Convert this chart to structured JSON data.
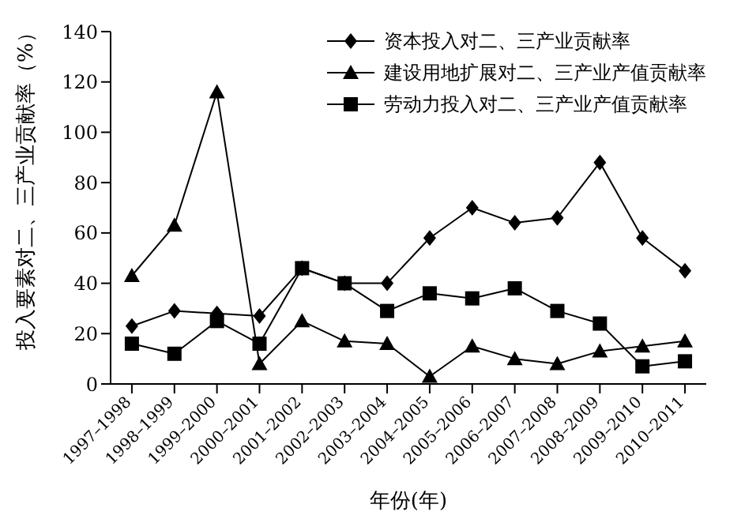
{
  "chart_data": {
    "type": "line",
    "xlabel": "年份(年)",
    "ylabel": "投入要素对二、三产业贡献率（%）",
    "categories": [
      "1997–1998",
      "1998–1999",
      "1999–2000",
      "2000–2001",
      "2001–2002",
      "2002–2003",
      "2003–2004",
      "2004–2005",
      "2005–2006",
      "2006–2007",
      "2007–2008",
      "2008–2009",
      "2009–2010",
      "2010–2011"
    ],
    "series": [
      {
        "name": "资本投入对二、三产业贡献率",
        "color": "#000000",
        "marker": "diamond",
        "values": [
          23,
          29,
          28,
          27,
          46,
          40,
          40,
          58,
          70,
          64,
          66,
          88,
          58,
          45
        ]
      },
      {
        "name": "建设用地扩展对二、三产业产值贡献率",
        "color": "#000000",
        "marker": "triangle",
        "values": [
          43,
          63,
          116,
          8,
          25,
          17,
          16,
          3,
          15,
          10,
          8,
          13,
          15,
          17
        ]
      },
      {
        "name": "劳动力投入对二、三产业产值贡献率",
        "color": "#000000",
        "marker": "square",
        "values": [
          16,
          12,
          25,
          16,
          46,
          40,
          29,
          36,
          34,
          38,
          29,
          24,
          7,
          9
        ]
      }
    ],
    "ylim": [
      0,
      140
    ],
    "yticks": [
      0,
      20,
      40,
      60,
      80,
      100,
      120,
      140
    ],
    "grid": false,
    "legend": "top right",
    "line_style": "solid"
  }
}
